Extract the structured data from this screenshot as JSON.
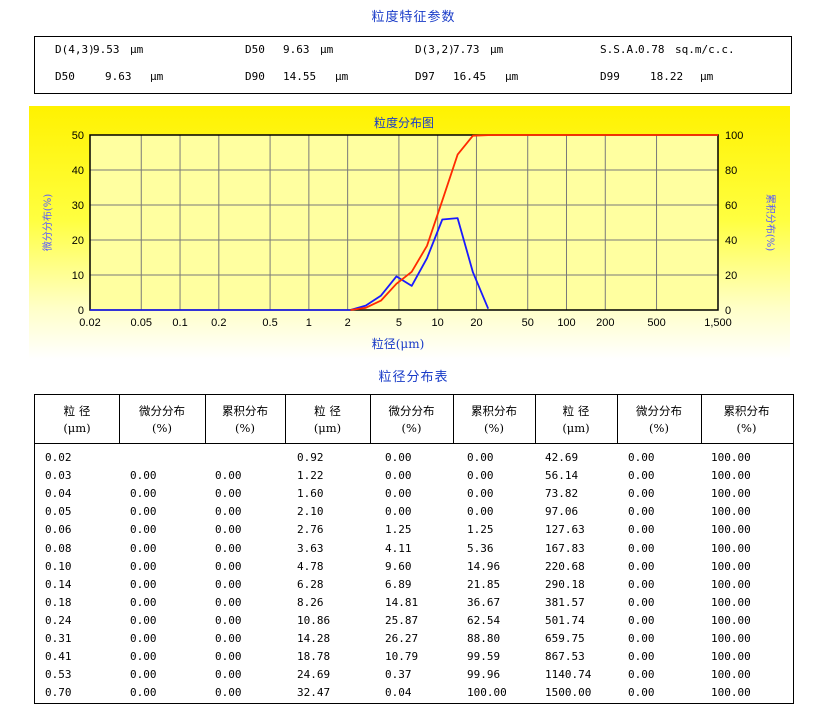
{
  "params": {
    "title": "粒度特征参数",
    "row1": [
      {
        "label": "D(4,3)",
        "value": "9.53",
        "unit": "μm"
      },
      {
        "label": "D50",
        "value": "9.63",
        "unit": "μm"
      },
      {
        "label": "D(3,2)",
        "value": "7.73",
        "unit": "μm"
      },
      {
        "label": "S.S.A.",
        "value": "0.78",
        "unit": "sq.m/c.c."
      }
    ],
    "row2": [
      {
        "label": "D50",
        "value": "9.63",
        "unit": "μm"
      },
      {
        "label": "D90",
        "value": "14.55",
        "unit": "μm"
      },
      {
        "label": "D97",
        "value": "16.45",
        "unit": "μm"
      },
      {
        "label": "D99",
        "value": "18.22",
        "unit": "μm"
      }
    ]
  },
  "chart_data": {
    "type": "line",
    "title": "粒度分布图",
    "xlabel": "粒径(μm)",
    "ylabel": "微分分布(%)",
    "y2label": "累积分布(%)",
    "xscale": "log",
    "xlim": [
      0.02,
      1500
    ],
    "ylim": [
      0,
      50
    ],
    "y2lim": [
      0,
      100
    ],
    "xticks": [
      "0.02",
      "0.05",
      "0.1",
      "0.2",
      "0.5",
      "1",
      "2",
      "5",
      "10",
      "20",
      "50",
      "100",
      "200",
      "500",
      "1,500"
    ],
    "xtick_values": [
      0.02,
      0.05,
      0.1,
      0.2,
      0.5,
      1,
      2,
      5,
      10,
      20,
      50,
      100,
      200,
      500,
      1500
    ],
    "yticks": [
      0,
      10,
      20,
      30,
      40,
      50
    ],
    "y2ticks": [
      0,
      20,
      40,
      60,
      80,
      100
    ],
    "grid": true,
    "background": "yellow gradient",
    "series": [
      {
        "color": "#1a1aff",
        "x": [
          2.1,
          2.76,
          3.63,
          4.78,
          6.28,
          8.26,
          10.86,
          14.28,
          18.78,
          24.69
        ],
        "y": [
          0.0,
          1.25,
          4.11,
          9.6,
          6.89,
          14.81,
          25.87,
          26.27,
          10.79,
          0.37
        ]
      },
      {
        "color": "#ff2a00",
        "x": [
          2.1,
          2.76,
          3.63,
          4.78,
          6.28,
          8.26,
          10.86,
          14.28,
          18.78,
          24.69,
          32.47,
          42.69,
          1500
        ],
        "y": [
          0.0,
          1.25,
          5.36,
          14.96,
          21.85,
          36.67,
          62.54,
          88.8,
          99.59,
          99.96,
          100.0,
          100.0,
          100.0
        ]
      }
    ]
  },
  "table": {
    "title": "粒径分布表",
    "headers": [
      {
        "l1": "粒  径",
        "l2": "(μm)"
      },
      {
        "l1": "微分分布",
        "l2": "(%)"
      },
      {
        "l1": "累积分布",
        "l2": "(%)"
      },
      {
        "l1": "粒  径",
        "l2": "(μm)"
      },
      {
        "l1": "微分分布",
        "l2": "(%)"
      },
      {
        "l1": "累积分布",
        "l2": "(%)"
      },
      {
        "l1": "粒  径",
        "l2": "(μm)"
      },
      {
        "l1": "微分分布",
        "l2": "(%)"
      },
      {
        "l1": "累积分布",
        "l2": "(%)"
      }
    ],
    "rows": [
      [
        "0.02",
        "",
        "",
        "0.92",
        "0.00",
        "0.00",
        "42.69",
        "0.00",
        "100.00"
      ],
      [
        "0.03",
        "0.00",
        "0.00",
        "1.22",
        "0.00",
        "0.00",
        "56.14",
        "0.00",
        "100.00"
      ],
      [
        "0.04",
        "0.00",
        "0.00",
        "1.60",
        "0.00",
        "0.00",
        "73.82",
        "0.00",
        "100.00"
      ],
      [
        "0.05",
        "0.00",
        "0.00",
        "2.10",
        "0.00",
        "0.00",
        "97.06",
        "0.00",
        "100.00"
      ],
      [
        "0.06",
        "0.00",
        "0.00",
        "2.76",
        "1.25",
        "1.25",
        "127.63",
        "0.00",
        "100.00"
      ],
      [
        "0.08",
        "0.00",
        "0.00",
        "3.63",
        "4.11",
        "5.36",
        "167.83",
        "0.00",
        "100.00"
      ],
      [
        "0.10",
        "0.00",
        "0.00",
        "4.78",
        "9.60",
        "14.96",
        "220.68",
        "0.00",
        "100.00"
      ],
      [
        "0.14",
        "0.00",
        "0.00",
        "6.28",
        "6.89",
        "21.85",
        "290.18",
        "0.00",
        "100.00"
      ],
      [
        "0.18",
        "0.00",
        "0.00",
        "8.26",
        "14.81",
        "36.67",
        "381.57",
        "0.00",
        "100.00"
      ],
      [
        "0.24",
        "0.00",
        "0.00",
        "10.86",
        "25.87",
        "62.54",
        "501.74",
        "0.00",
        "100.00"
      ],
      [
        "0.31",
        "0.00",
        "0.00",
        "14.28",
        "26.27",
        "88.80",
        "659.75",
        "0.00",
        "100.00"
      ],
      [
        "0.41",
        "0.00",
        "0.00",
        "18.78",
        "10.79",
        "99.59",
        "867.53",
        "0.00",
        "100.00"
      ],
      [
        "0.53",
        "0.00",
        "0.00",
        "24.69",
        "0.37",
        "99.96",
        "1140.74",
        "0.00",
        "100.00"
      ],
      [
        "0.70",
        "0.00",
        "0.00",
        "32.47",
        "0.04",
        "100.00",
        "1500.00",
        "0.00",
        "100.00"
      ]
    ]
  }
}
